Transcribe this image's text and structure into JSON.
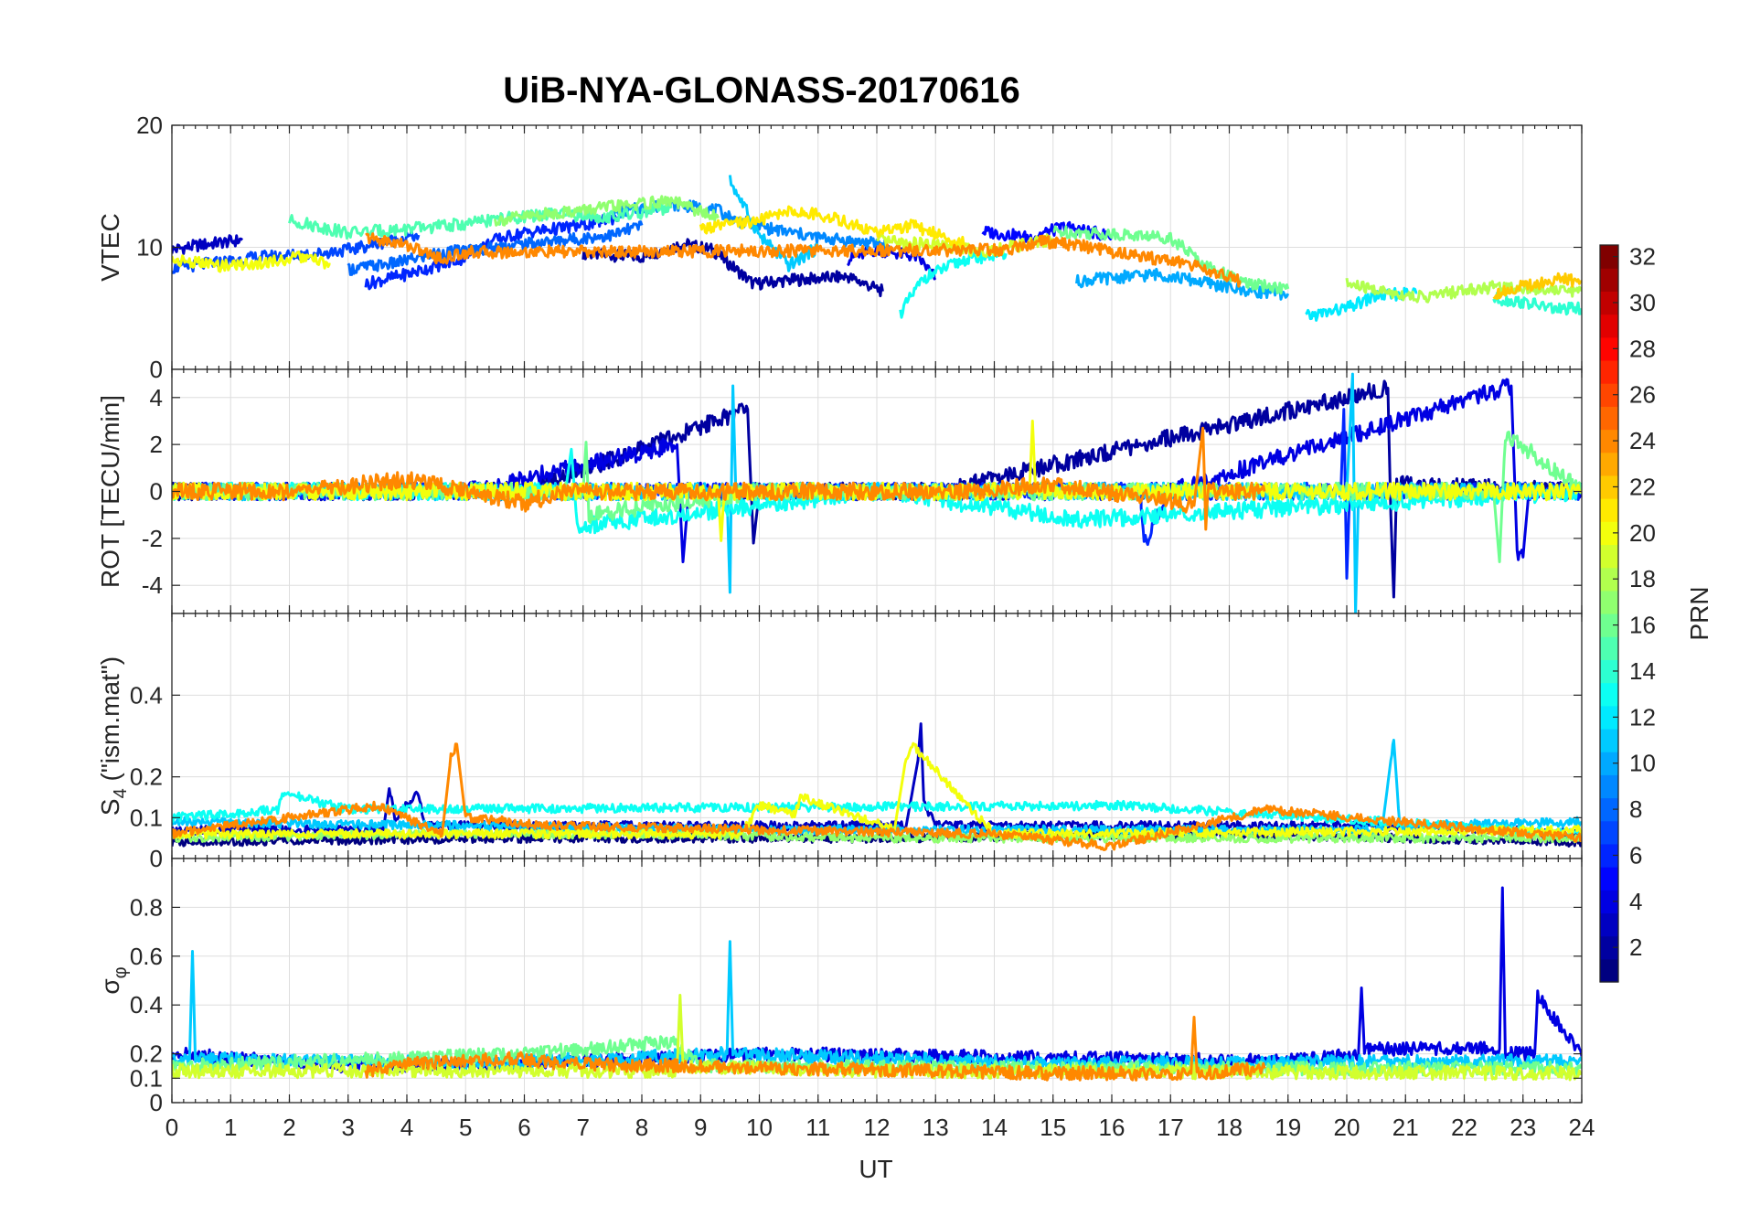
{
  "chart_data": {
    "type": "line",
    "title": "UiB-NYA-GLONASS-20170616",
    "xlabel": "UT",
    "xlim": [
      0,
      24
    ],
    "xticks": [
      0,
      1,
      2,
      3,
      4,
      5,
      6,
      7,
      8,
      9,
      10,
      11,
      12,
      13,
      14,
      15,
      16,
      17,
      18,
      19,
      20,
      21,
      22,
      23,
      24
    ],
    "grid": true,
    "colorbar": {
      "label": "PRN",
      "colormap": "jet",
      "range": [
        1,
        32
      ],
      "ticks": [
        2,
        4,
        6,
        8,
        10,
        12,
        14,
        16,
        18,
        20,
        22,
        24,
        26,
        28,
        30,
        32
      ]
    },
    "panels": [
      {
        "ylabel": "VTEC",
        "ylim": [
          0,
          20
        ],
        "yticks": [
          0,
          10,
          20
        ],
        "series": [
          {
            "prn": 2,
            "x": [
              7.0,
              8.0,
              8.7,
              9.2,
              9.9,
              10.5,
              11.5,
              12.1
            ],
            "y": [
              9.5,
              9.2,
              10.3,
              9.8,
              7.0,
              7.3,
              7.6,
              6.4
            ]
          },
          {
            "prn": 3,
            "x": [
              0.0,
              0.5,
              1.2
            ],
            "y": [
              9.8,
              10.2,
              10.6
            ]
          },
          {
            "prn": 4,
            "x": [
              11.5,
              12.0,
              12.7,
              13.0
            ],
            "y": [
              9.0,
              9.8,
              9.2,
              7.5
            ]
          },
          {
            "prn": 5,
            "x": [
              13.8,
              14.6,
              15.2,
              16.0
            ],
            "y": [
              11.3,
              10.8,
              11.7,
              10.9
            ]
          },
          {
            "prn": 6,
            "x": [
              3.3,
              4.0,
              4.9,
              5.5,
              6.0,
              7.0,
              7.6
            ],
            "y": [
              7.0,
              7.8,
              9.0,
              10.6,
              11.2,
              11.8,
              12.5
            ]
          },
          {
            "prn": 7,
            "x": [
              0.0,
              0.7,
              1.5,
              2.5,
              3.0,
              3.7,
              4.2
            ],
            "y": [
              8.3,
              8.7,
              9.2,
              9.5,
              9.8,
              10.5,
              11.0
            ]
          },
          {
            "prn": 8,
            "x": [
              3.0,
              3.8,
              4.5,
              5.5,
              6.7,
              7.5,
              8.0
            ],
            "y": [
              8.2,
              8.7,
              9.5,
              10.0,
              10.6,
              11.0,
              11.8
            ]
          },
          {
            "prn": 9,
            "x": [
              7.5,
              8.0,
              8.6,
              9.3,
              9.6,
              10.2,
              11.0,
              12.2
            ],
            "y": [
              12.8,
              13.2,
              13.5,
              13.0,
              12.2,
              11.5,
              10.8,
              10.2
            ]
          },
          {
            "prn": 10,
            "x": [
              15.4,
              16.0,
              16.8,
              17.5,
              18.2,
              19.0
            ],
            "y": [
              7.2,
              7.5,
              7.8,
              7.2,
              6.5,
              6.2
            ]
          },
          {
            "prn": 11,
            "x": [
              9.5,
              10.0,
              10.5,
              11.0
            ],
            "y": [
              15.5,
              11.0,
              8.5,
              10.0
            ]
          },
          {
            "prn": 12,
            "x": [
              19.3,
              20.0,
              20.5,
              21.2
            ],
            "y": [
              4.3,
              5.0,
              6.0,
              6.3
            ]
          },
          {
            "prn": 13,
            "x": [
              12.4,
              12.8,
              13.5,
              14.2
            ],
            "y": [
              4.6,
              7.5,
              9.0,
              9.5
            ]
          },
          {
            "prn": 14,
            "x": [
              22.5,
              23.0,
              23.6,
              24.0
            ],
            "y": [
              5.8,
              5.5,
              4.9,
              5.0
            ]
          },
          {
            "prn": 15,
            "x": [
              2.0,
              3.0,
              4.0,
              5.0,
              5.5,
              6.5,
              7.5,
              8.5
            ],
            "y": [
              12.2,
              11.2,
              11.5,
              11.9,
              12.3,
              12.7,
              12.5,
              13.2
            ]
          },
          {
            "prn": 16,
            "x": [
              15.0,
              16.0,
              17.0,
              17.6,
              18.3,
              19.0
            ],
            "y": [
              11.3,
              11.1,
              10.8,
              8.5,
              7.0,
              6.6
            ]
          },
          {
            "prn": 17,
            "x": [
              5.5,
              6.5,
              7.5,
              8.5,
              9.3
            ],
            "y": [
              12.2,
              12.8,
              13.3,
              13.8,
              12.4
            ]
          },
          {
            "prn": 18,
            "x": [
              20.0,
              20.6,
              21.3,
              22.0,
              22.6,
              23.3,
              24.0
            ],
            "y": [
              7.0,
              6.4,
              5.9,
              6.5,
              6.8,
              6.6,
              6.4
            ]
          },
          {
            "prn": 19,
            "x": [
              12.0,
              13.0,
              13.8,
              14.5,
              15.0
            ],
            "y": [
              10.5,
              10.2,
              9.7,
              10.2,
              10.7
            ]
          },
          {
            "prn": 20,
            "x": [
              0.0,
              0.8,
              1.5,
              2.2,
              2.7
            ],
            "y": [
              9.0,
              8.5,
              8.7,
              9.2,
              8.6
            ]
          },
          {
            "prn": 21,
            "x": [
              9.0,
              10.0,
              10.5,
              11.2,
              12.0,
              12.6,
              13.5
            ],
            "y": [
              11.5,
              12.2,
              13.0,
              12.5,
              11.2,
              11.8,
              10.3
            ]
          },
          {
            "prn": 22,
            "x": [
              22.5,
              23.0,
              23.6,
              24.0
            ],
            "y": [
              6.2,
              6.8,
              7.4,
              7.2
            ]
          },
          {
            "prn": 24,
            "x": [
              3.3,
              4.0,
              4.6,
              5.0,
              14.2,
              14.8,
              15.4,
              16.4,
              17.2,
              18.2
            ],
            "y": [
              10.8,
              10.2,
              9.0,
              9.6,
              9.8,
              10.5,
              10.2,
              9.3,
              8.8,
              7.2
            ]
          }
        ]
      },
      {
        "ylabel": "ROT [TECU/min]",
        "ylim": [
          -5.2,
          5.2
        ],
        "yticks": [
          -4,
          -2,
          0,
          2,
          4
        ],
        "series": [
          {
            "prn": 2,
            "x": [
              0,
              6,
              9.8,
              9.9,
              10.0,
              13,
              20.7,
              20.75,
              20.8,
              20.85,
              24
            ],
            "y": [
              0,
              0,
              3.5,
              -2.2,
              0,
              0,
              4.4,
              -1,
              -4.5,
              0.3,
              0
            ]
          },
          {
            "prn": 4,
            "x": [
              0,
              5,
              8.6,
              8.7,
              8.8,
              17,
              22.8,
              22.9,
              23.0,
              23.1,
              24
            ],
            "y": [
              0,
              0,
              2.0,
              -3.0,
              0,
              0,
              4.5,
              -2.5,
              -2.8,
              0,
              0
            ]
          },
          {
            "prn": 6,
            "x": [
              0,
              16.5,
              16.5,
              16.55,
              17,
              19.9,
              19.95,
              20.0,
              20.05,
              24
            ],
            "y": [
              0,
              0,
              -0.7,
              -2.2,
              0,
              0,
              3.5,
              -3.7,
              0,
              0
            ]
          },
          {
            "prn": 11,
            "x": [
              0,
              9.45,
              9.5,
              9.55,
              9.6,
              20.0,
              20.1,
              20.15,
              20.2,
              24
            ],
            "y": [
              0,
              0,
              -4.3,
              4.5,
              0,
              0,
              5.0,
              -5.2,
              0,
              0
            ]
          },
          {
            "prn": 13,
            "x": [
              0,
              6.7,
              6.8,
              6.9,
              12,
              15.5,
              24
            ],
            "y": [
              0,
              0,
              1.8,
              -1.5,
              0,
              -1.2,
              0
            ]
          },
          {
            "prn": 16,
            "x": [
              0,
              7.0,
              7.05,
              7.1,
              10,
              22.5,
              22.6,
              22.7,
              24
            ],
            "y": [
              0,
              0,
              2.1,
              -1.0,
              0,
              0,
              -3.0,
              2.5,
              0
            ]
          },
          {
            "prn": 20,
            "x": [
              0,
              9.3,
              9.35,
              9.4,
              14.6,
              14.65,
              14.7,
              24
            ],
            "y": [
              0,
              0,
              -2.1,
              0,
              0,
              3.0,
              0,
              0
            ]
          },
          {
            "prn": 24,
            "x": [
              0,
              2,
              4,
              6,
              6.7,
              13.5,
              15,
              17.4,
              17.55,
              17.6,
              17.65,
              18.6
            ],
            "y": [
              0,
              0,
              0.5,
              -0.5,
              0,
              0,
              0.3,
              -0.6,
              2.7,
              -1.3,
              0,
              0
            ]
          }
        ]
      },
      {
        "ylabel": "S_4 (\"ism.mat\")",
        "ylab_main": "S",
        "ylab_sub": "4",
        "ylab_rest": " (\"ism.mat\")",
        "ylim": [
          0,
          0.6
        ],
        "yticks": [
          0,
          0.1,
          0.2,
          0.4
        ],
        "series": [
          {
            "prn": 1,
            "x": [
              0,
              6,
              12,
              18,
              24
            ],
            "y": [
              0.04,
              0.05,
              0.05,
              0.06,
              0.04
            ]
          },
          {
            "prn": 3,
            "x": [
              0,
              3.6,
              3.7,
              3.8,
              4.2,
              4.3,
              12.5,
              12.7,
              12.75,
              12.8,
              13,
              21,
              24
            ],
            "y": [
              0.07,
              0.07,
              0.17,
              0.1,
              0.16,
              0.08,
              0.08,
              0.24,
              0.33,
              0.14,
              0.08,
              0.08,
              0.06
            ]
          },
          {
            "prn": 11,
            "x": [
              0,
              5,
              10,
              20.6,
              20.75,
              20.8,
              20.9,
              24
            ],
            "y": [
              0.09,
              0.08,
              0.07,
              0.07,
              0.24,
              0.29,
              0.08,
              0.09
            ]
          },
          {
            "prn": 13,
            "x": [
              0,
              1.8,
              1.9,
              3,
              16.2,
              24
            ],
            "y": [
              0.1,
              0.12,
              0.16,
              0.12,
              0.13,
              0.06
            ]
          },
          {
            "prn": 17,
            "x": [
              0,
              4,
              8,
              12,
              16,
              20,
              24
            ],
            "y": [
              0.05,
              0.06,
              0.06,
              0.05,
              0.05,
              0.05,
              0.05
            ]
          },
          {
            "prn": 20,
            "x": [
              0,
              9.7,
              10,
              10.6,
              10.7,
              12.3,
              12.5,
              12.6,
              14,
              24
            ],
            "y": [
              0.06,
              0.06,
              0.13,
              0.11,
              0.15,
              0.07,
              0.25,
              0.28,
              0.06,
              0.07
            ]
          },
          {
            "prn": 24,
            "x": [
              0,
              3.5,
              4.6,
              4.75,
              4.85,
              5.0,
              6.5,
              14,
              16,
              18.6,
              24
            ],
            "y": [
              0.06,
              0.13,
              0.06,
              0.25,
              0.28,
              0.1,
              0.08,
              0.06,
              0.03,
              0.12,
              0.05
            ]
          }
        ]
      },
      {
        "ylabel": "σ_φ",
        "ylab_main": "σ",
        "ylab_sub": "φ",
        "ylim": [
          0,
          1
        ],
        "yticks": [
          0,
          0.1,
          0.2,
          0.4,
          0.6,
          0.8
        ],
        "series": [
          {
            "prn": 4,
            "x": [
              0,
              3,
              6,
              10,
              19,
              20.2,
              20.25,
              20.3,
              22.6,
              22.65,
              22.7,
              23.2,
              23.25,
              24
            ],
            "y": [
              0.2,
              0.15,
              0.16,
              0.2,
              0.17,
              0.2,
              0.47,
              0.22,
              0.22,
              0.88,
              0.2,
              0.2,
              0.44,
              0.19
            ]
          },
          {
            "prn": 11,
            "x": [
              0,
              0.3,
              0.35,
              0.4,
              5,
              9.45,
              9.5,
              9.55,
              15,
              24
            ],
            "y": [
              0.17,
              0.17,
              0.62,
              0.18,
              0.16,
              0.2,
              0.66,
              0.2,
              0.16,
              0.17
            ]
          },
          {
            "prn": 16,
            "x": [
              0,
              6,
              8.5,
              9,
              15,
              19,
              24
            ],
            "y": [
              0.15,
              0.2,
              0.25,
              0.15,
              0.14,
              0.14,
              0.14
            ]
          },
          {
            "prn": 19,
            "x": [
              0,
              4,
              8.6,
              8.65,
              8.7,
              12,
              24
            ],
            "y": [
              0.13,
              0.13,
              0.13,
              0.44,
              0.15,
              0.13,
              0.12
            ]
          },
          {
            "prn": 24,
            "x": [
              3.3,
              4,
              5,
              6,
              6.6,
              15,
              17.35,
              17.4,
              17.45,
              18.6
            ],
            "y": [
              0.13,
              0.16,
              0.17,
              0.18,
              0.16,
              0.12,
              0.12,
              0.35,
              0.12,
              0.14
            ]
          }
        ]
      }
    ]
  }
}
